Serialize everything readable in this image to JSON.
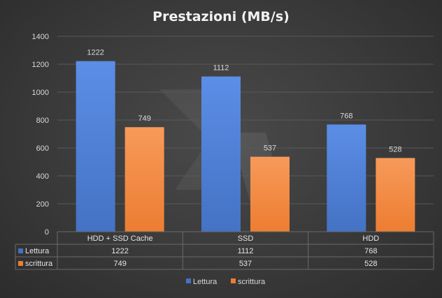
{
  "chart_data": {
    "type": "bar",
    "title": "Prestazioni  (MB/s)",
    "categories": [
      "HDD + SSD Cache",
      "SSD",
      "HDD"
    ],
    "series": [
      {
        "name": "Lettura",
        "values": [
          1222,
          1112,
          768
        ],
        "color": "#4472c4"
      },
      {
        "name": "scrittura",
        "values": [
          749,
          537,
          528
        ],
        "color": "#ed7d31"
      }
    ],
    "ylim": [
      0,
      1400
    ],
    "yticks": [
      "0",
      "200",
      "400",
      "600",
      "800",
      "1000",
      "1200",
      "1400"
    ],
    "grid": true,
    "data_table": true,
    "legend": "bottom"
  }
}
